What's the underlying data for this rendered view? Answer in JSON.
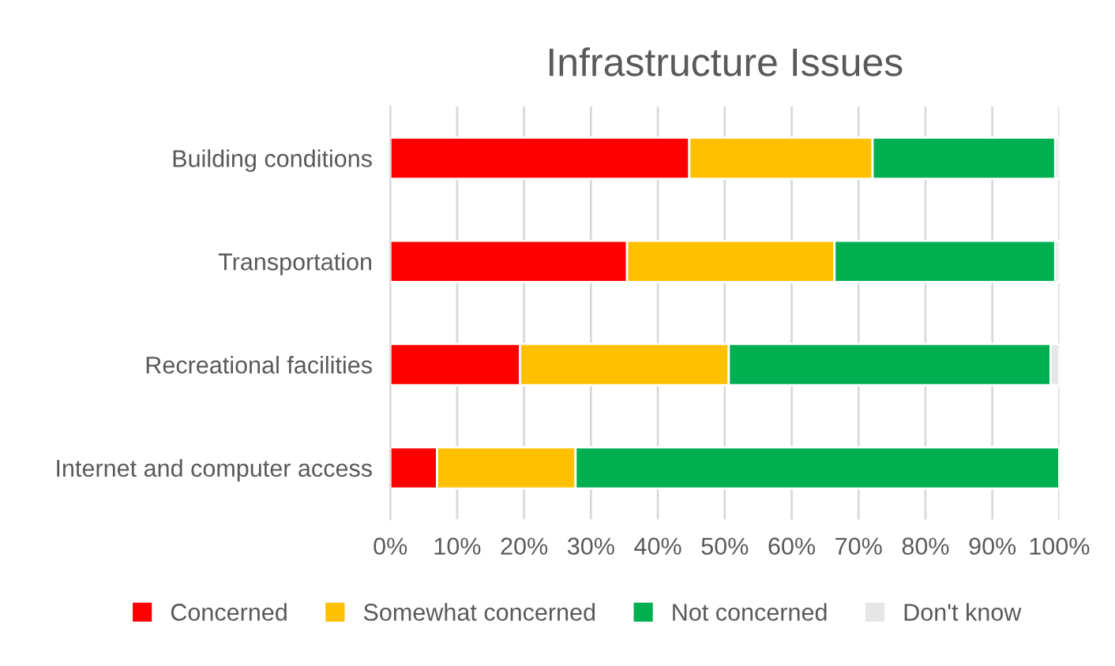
{
  "chart_data": {
    "type": "bar",
    "orientation": "horizontal",
    "stacked": true,
    "title": "Infrastructure Issues",
    "categories": [
      "Building conditions",
      "Transportation",
      "Recreational facilities",
      "Internet and computer access"
    ],
    "series": [
      {
        "name": "Concerned",
        "color": "#ff0000",
        "values": [
          44.7,
          35.4,
          19.4,
          7.0
        ]
      },
      {
        "name": "Somewhat concerned",
        "color": "#ffc000",
        "values": [
          27.4,
          31.0,
          31.2,
          20.7
        ]
      },
      {
        "name": "Not concerned",
        "color": "#00b050",
        "values": [
          27.3,
          33.0,
          48.1,
          72.3
        ]
      },
      {
        "name": "Don't know",
        "color": "#e6e6e6",
        "values": [
          0.6,
          0.6,
          1.3,
          null
        ]
      }
    ],
    "xlim": [
      0,
      100
    ],
    "xticks": [
      {
        "value": 0,
        "label": "0%"
      },
      {
        "value": 10,
        "label": "10%"
      },
      {
        "value": 20,
        "label": "20%"
      },
      {
        "value": 30,
        "label": "30%"
      },
      {
        "value": 40,
        "label": "40%"
      },
      {
        "value": 50,
        "label": "50%"
      },
      {
        "value": 60,
        "label": "60%"
      },
      {
        "value": 70,
        "label": "70%"
      },
      {
        "value": 80,
        "label": "80%"
      },
      {
        "value": 90,
        "label": "90%"
      },
      {
        "value": 100,
        "label": "100%"
      }
    ],
    "grid": "x",
    "legend": "bottom"
  }
}
